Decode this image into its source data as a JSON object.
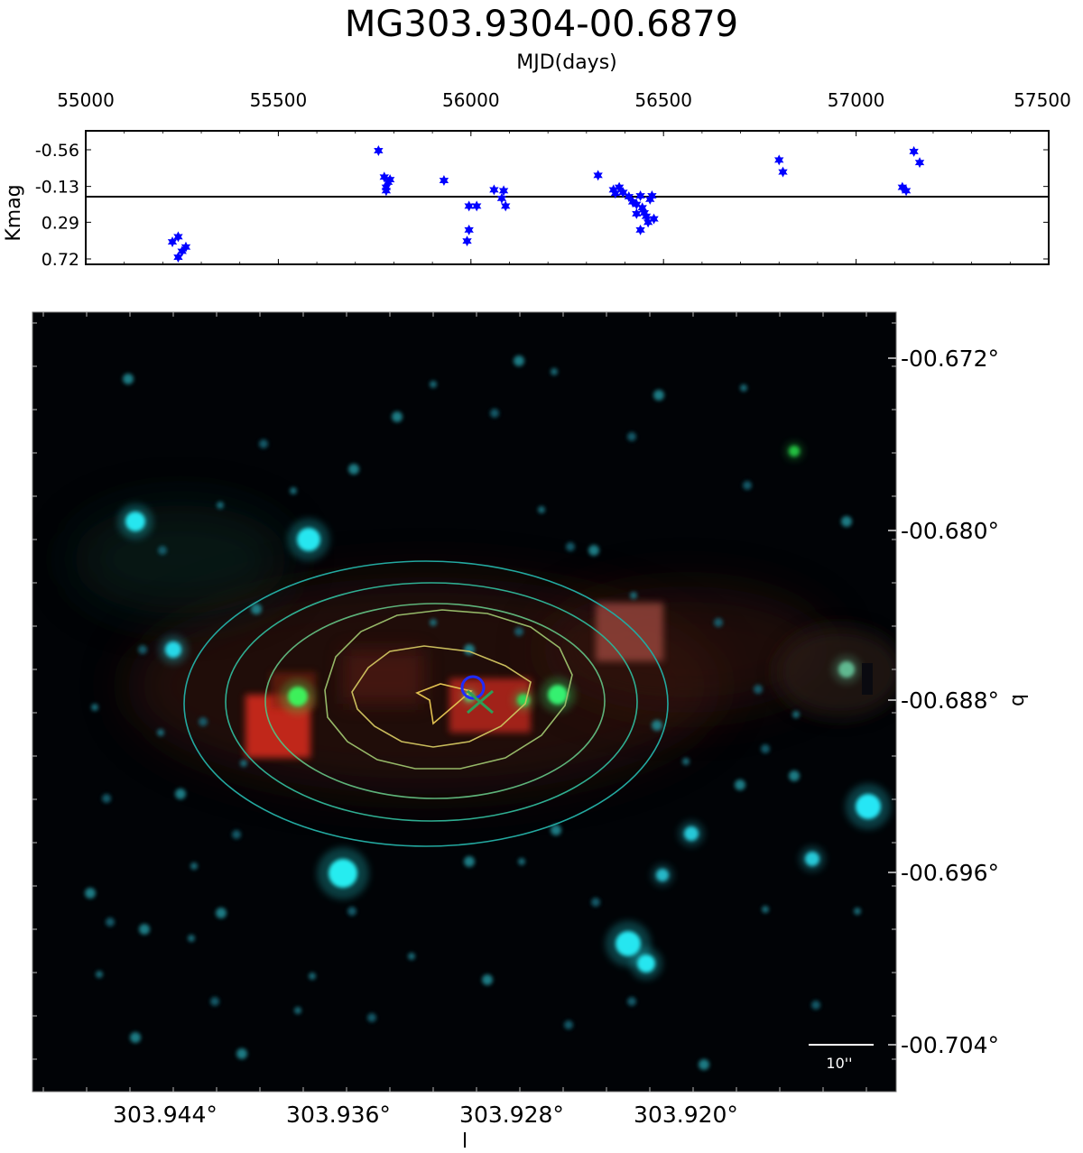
{
  "title": "MG303.9304-00.6879",
  "chart_data": [
    {
      "type": "scatter",
      "xlabel": "MJD(days)",
      "ylabel": "Kmag",
      "xlim": [
        55000,
        57500
      ],
      "ylim": [
        0.72,
        -0.56
      ],
      "xticks": [
        "55000",
        "55500",
        "56000",
        "56500",
        "57000",
        "57500"
      ],
      "yticks": [
        "-0.56",
        "-0.13",
        "0.29",
        "0.72"
      ],
      "reference_line": -0.01,
      "series": [
        {
          "color": "#0000ff",
          "marker": "star",
          "points": [
            [
              55225,
              0.52
            ],
            [
              55240,
              0.46
            ],
            [
              55250,
              0.63
            ],
            [
              55260,
              0.58
            ],
            [
              55240,
              0.7
            ],
            [
              55760,
              -0.55
            ],
            [
              55775,
              -0.24
            ],
            [
              55785,
              -0.18
            ],
            [
              55790,
              -0.21
            ],
            [
              55780,
              -0.12
            ],
            [
              55780,
              -0.08
            ],
            [
              55930,
              -0.2
            ],
            [
              55995,
              0.1
            ],
            [
              56015,
              0.1
            ],
            [
              55995,
              0.38
            ],
            [
              55990,
              0.51
            ],
            [
              56060,
              -0.09
            ],
            [
              56085,
              -0.08
            ],
            [
              56090,
              0.1
            ],
            [
              56080,
              0.01
            ],
            [
              56330,
              -0.26
            ],
            [
              56370,
              -0.09
            ],
            [
              56375,
              -0.05
            ],
            [
              56385,
              -0.12
            ],
            [
              56395,
              -0.06
            ],
            [
              56410,
              -0.01
            ],
            [
              56420,
              0.05
            ],
            [
              56430,
              0.08
            ],
            [
              56440,
              -0.02
            ],
            [
              56445,
              0.12
            ],
            [
              56450,
              0.18
            ],
            [
              56455,
              0.22
            ],
            [
              56460,
              0.29
            ],
            [
              56465,
              0.02
            ],
            [
              56470,
              -0.02
            ],
            [
              56430,
              0.19
            ],
            [
              56440,
              0.38
            ],
            [
              56475,
              0.25
            ],
            [
              56800,
              -0.44
            ],
            [
              56810,
              -0.3
            ],
            [
              57120,
              -0.12
            ],
            [
              57130,
              -0.08
            ],
            [
              57150,
              -0.54
            ],
            [
              57165,
              -0.41
            ]
          ]
        }
      ]
    },
    {
      "type": "image",
      "xlabel": "l",
      "ylabel": "b",
      "xticks": [
        "303.944°",
        "303.936°",
        "303.928°",
        "303.920°"
      ],
      "yticks": [
        "-00.672°",
        "-00.680°",
        "-00.688°",
        "-00.696°",
        "-00.704°"
      ],
      "scale_bar": "10''",
      "contour_colors": [
        "#23a9a0",
        "#2fae92",
        "#5eb37a",
        "#96b868",
        "#c9bc5c",
        "#e0c050"
      ],
      "marker_circle_color": "#1f2cff",
      "marker_x_color": "#2e9e57"
    }
  ]
}
